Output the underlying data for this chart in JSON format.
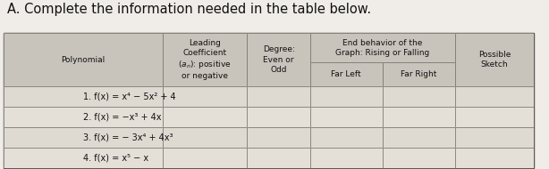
{
  "title": "A. Complete the information needed in the table below.",
  "title_fontsize": 10.5,
  "header_row": [
    "Polynomial",
    "Leading\nCoefficient\n(aₙ): positive\nor negative",
    "Degree:\nEven or\nOdd",
    "End behavior of the\nGraph: Rising or Falling",
    "Possible\nSketch"
  ],
  "subheader": [
    "",
    "",
    "",
    "Far Left",
    "Far Right",
    ""
  ],
  "rows": [
    "1. f(x) = x⁴ − 5x² + 4",
    "2. f(x) = −x³ + 4x",
    "3. f(x) = − 3x⁴ + 4x³",
    "4. f(x) = x⁵ − x"
  ],
  "bg_color": "#f0ede8",
  "table_bg": "#d8d4cc",
  "cell_bg": "#e8e4dc",
  "border_color": "#888880",
  "text_color": "#111111"
}
